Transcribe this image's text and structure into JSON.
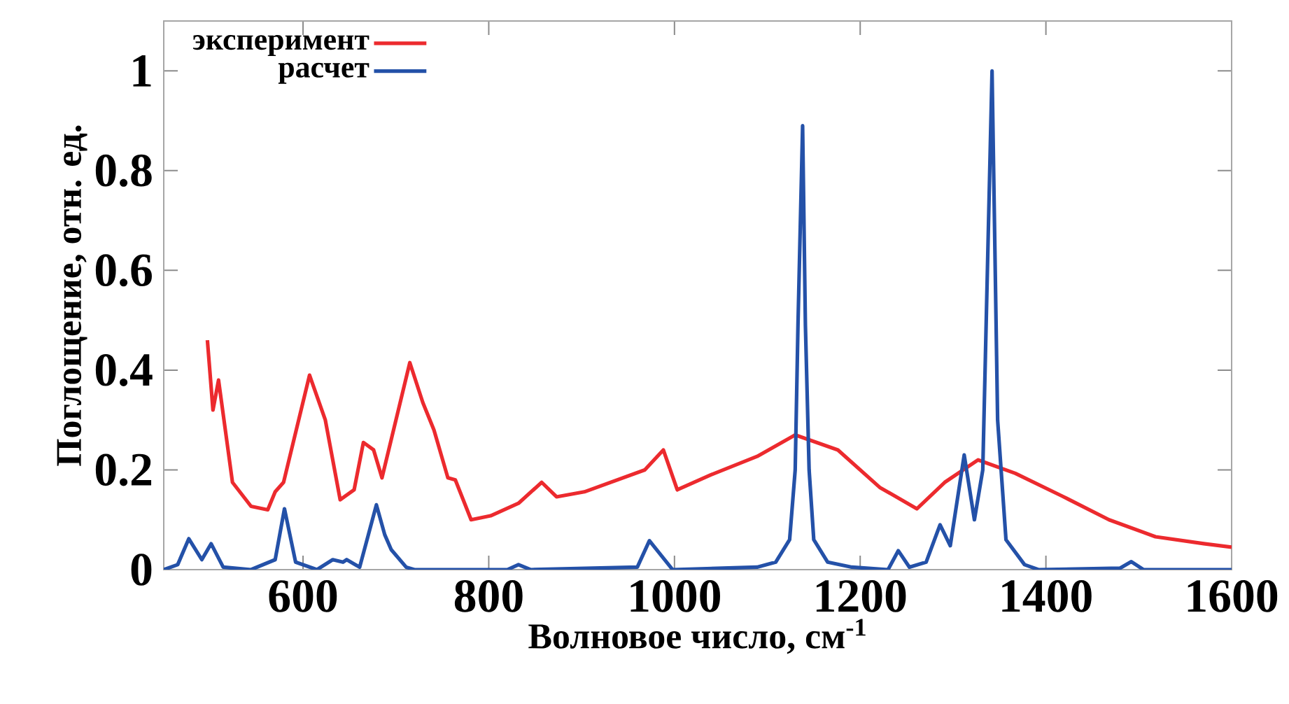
{
  "chart_data": {
    "type": "line",
    "xlabel": "Волновое число, см$^{-1}$",
    "ylabel": "Поглощение, отн. ед.",
    "xlim": [
      450,
      1600
    ],
    "ylim": [
      0,
      1.1
    ],
    "xticks": [
      600,
      800,
      1000,
      1200,
      1400,
      1600
    ],
    "yticks": [
      0,
      0.2,
      0.4,
      0.6,
      0.8,
      1
    ],
    "legend": "top left",
    "marker": "none",
    "line_style": "solid",
    "series": [
      {
        "name": "эксперимент",
        "color": "#ec2a2e",
        "x": [
          497,
          503,
          509,
          524,
          544,
          562,
          570,
          579,
          607,
          624,
          640,
          655,
          665,
          676,
          685,
          715,
          729,
          741,
          756,
          764,
          781,
          802,
          832,
          857,
          873,
          903,
          968,
          988,
          1003,
          1039,
          1089,
          1130,
          1176,
          1221,
          1261,
          1291,
          1327,
          1367,
          1418,
          1468,
          1518,
          1570,
          1600
        ],
        "values": [
          0.46,
          0.32,
          0.38,
          0.175,
          0.127,
          0.12,
          0.156,
          0.175,
          0.39,
          0.3,
          0.14,
          0.16,
          0.255,
          0.24,
          0.184,
          0.415,
          0.335,
          0.28,
          0.184,
          0.18,
          0.1,
          0.108,
          0.133,
          0.175,
          0.146,
          0.156,
          0.2,
          0.24,
          0.16,
          0.19,
          0.227,
          0.27,
          0.24,
          0.165,
          0.122,
          0.175,
          0.22,
          0.193,
          0.147,
          0.1,
          0.066,
          0.052,
          0.045
        ]
      },
      {
        "name": "расчет",
        "color": "#2451a8",
        "x": [
          450,
          465,
          477,
          491,
          501,
          514,
          544,
          570,
          580,
          592,
          615,
          632,
          643,
          647,
          661,
          679,
          688,
          695,
          711,
          720,
          820,
          832,
          845,
          960,
          973,
          998,
          1089,
          1109,
          1124,
          1130,
          1133,
          1138,
          1141,
          1145,
          1150,
          1165,
          1191,
          1230,
          1241,
          1253,
          1271,
          1286,
          1297,
          1312,
          1323,
          1332,
          1342,
          1348,
          1357,
          1377,
          1392,
          1480,
          1492,
          1505,
          1600
        ],
        "values": [
          0,
          0.01,
          0.062,
          0.02,
          0.052,
          0.005,
          0,
          0.02,
          0.122,
          0.015,
          0,
          0.02,
          0.015,
          0.02,
          0.005,
          0.13,
          0.07,
          0.04,
          0.005,
          0,
          0,
          0.01,
          0,
          0.005,
          0.058,
          0,
          0.005,
          0.015,
          0.06,
          0.2,
          0.49,
          0.89,
          0.49,
          0.2,
          0.06,
          0.015,
          0.005,
          0,
          0.038,
          0.005,
          0.015,
          0.09,
          0.048,
          0.23,
          0.1,
          0.2,
          1.0,
          0.3,
          0.06,
          0.01,
          0,
          0.003,
          0.016,
          0,
          0
        ]
      }
    ]
  }
}
